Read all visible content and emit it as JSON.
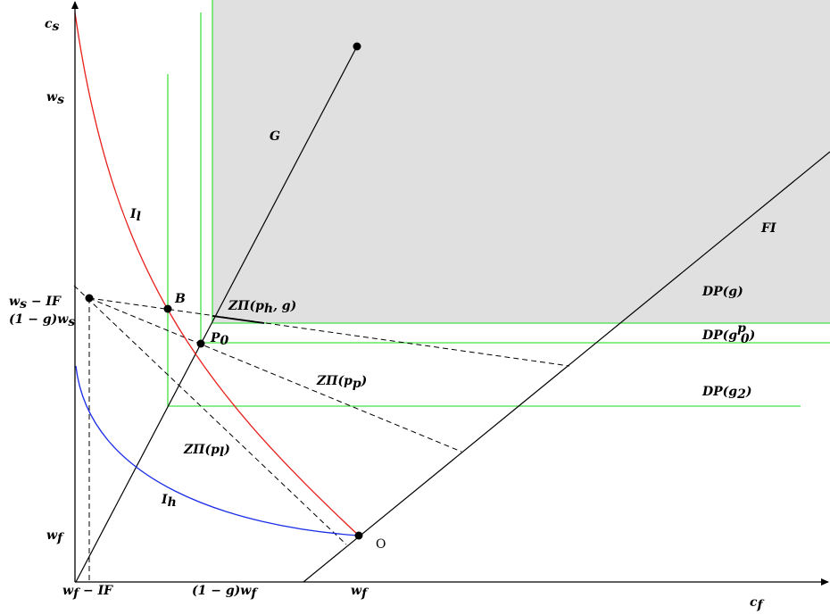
{
  "axes": {
    "x_label": "c",
    "x_sub": "f",
    "y_label": "c",
    "y_sub": "s"
  },
  "ticks": {
    "y": [
      {
        "id": "ws",
        "main": "w",
        "sub": "s"
      },
      {
        "id": "ws-if",
        "main": "w",
        "sub": "s",
        "rest": " − IF"
      },
      {
        "id": "1g-ws",
        "pre": "(1 − g)w",
        "sub": "s"
      },
      {
        "id": "wf",
        "main": "w",
        "sub": "f"
      }
    ],
    "x": [
      {
        "id": "wf-if",
        "main": "w",
        "sub": "f",
        "rest": " − IF"
      },
      {
        "id": "1g-wf",
        "pre": "(1 − g)w",
        "sub": "f"
      },
      {
        "id": "wf",
        "main": "w",
        "sub": "f"
      }
    ]
  },
  "labels": {
    "G": "G",
    "FI": "FI",
    "Il": {
      "main": "I",
      "sub": "l"
    },
    "Ih": {
      "main": "I",
      "sub": "h"
    },
    "B": "B",
    "P0": {
      "main": "P",
      "sub": "0"
    },
    "O": "O",
    "zpi_ph_g": {
      "pre": "ZΠ(p",
      "sub": "h",
      "post": ", g)"
    },
    "zpi_pp": {
      "pre": "ZΠ(p",
      "sub": "p",
      "post": ")"
    },
    "zpi_pl": {
      "pre": "ZΠ(p",
      "sub": "l",
      "post": ")"
    },
    "dp_g": "DP(g)",
    "dp_g0p": {
      "pre": "DP(g",
      "sub": "0",
      "sup": "p",
      "post": ")"
    },
    "dp_g2": {
      "pre": "DP(g",
      "sub": "2",
      "post": ")"
    }
  },
  "colors": {
    "axis": "#000000",
    "red_curve": "#e8201c",
    "blue_curve": "#1a2ee8",
    "green": "#44e044",
    "shade": "#e0e0e0",
    "dashed": "#000000"
  }
}
